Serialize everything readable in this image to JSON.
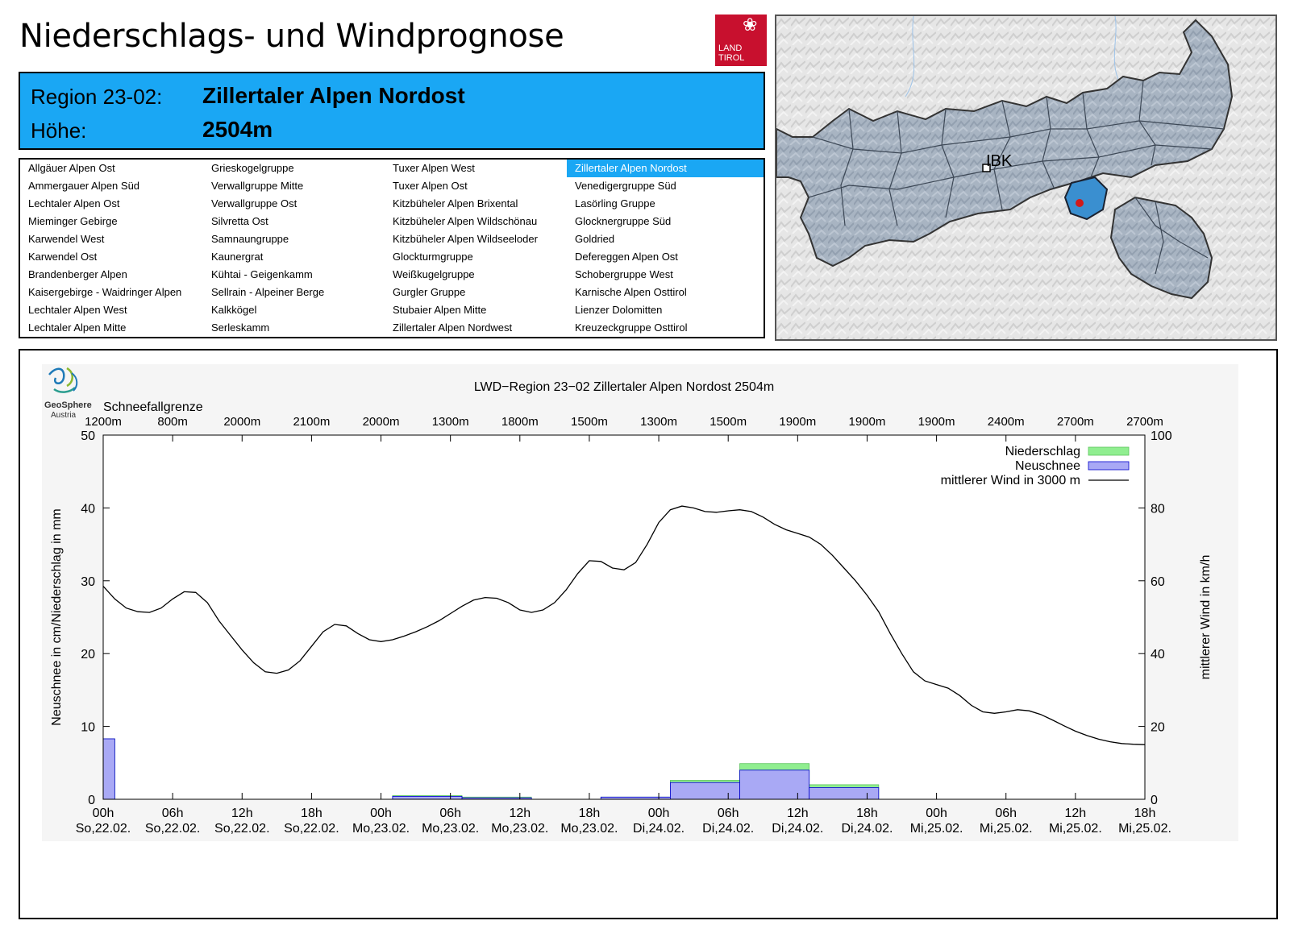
{
  "header": {
    "title": "Niederschlags- und Windprognose",
    "logo": {
      "line1": "LAND",
      "line2": "TIROL",
      "icon": "tirol-eagle-icon",
      "color": "#c8102e"
    }
  },
  "region": {
    "region_label": "Region 23-02:",
    "region_name": "Zillertaler Alpen Nordost",
    "height_label": "Höhe:",
    "height_value": "2504m",
    "accent": "#1aa7f4"
  },
  "region_list": {
    "columns": [
      [
        "Allgäuer Alpen Ost",
        "Ammergauer Alpen Süd",
        "Lechtaler Alpen Ost",
        "Mieminger Gebirge",
        "Karwendel West",
        "Karwendel Ost",
        "Brandenberger Alpen",
        "Kaisergebirge - Waidringer Alpen",
        "Lechtaler Alpen West",
        "Lechtaler Alpen Mitte"
      ],
      [
        "Grieskogelgruppe",
        "Verwallgruppe Mitte",
        "Verwallgruppe Ost",
        "Silvretta Ost",
        "Samnaungruppe",
        "Kaunergrat",
        "Kühtai - Geigenkamm",
        "Sellrain - Alpeiner Berge",
        "Kalkkögel",
        "Serleskamm"
      ],
      [
        "Tuxer Alpen West",
        "Tuxer Alpen Ost",
        "Kitzbüheler Alpen Brixental",
        "Kitzbüheler Alpen Wildschönau",
        "Kitzbüheler Alpen Wildseeloder",
        "Glockturmgruppe",
        "Weißkugelgruppe",
        "Gurgler Gruppe",
        "Stubaier Alpen Mitte",
        "Zillertaler Alpen Nordwest"
      ],
      [
        "Zillertaler Alpen Nordost",
        "Venedigergruppe Süd",
        "Lasörling Gruppe",
        "Glocknergruppe Süd",
        "Goldried",
        "Defereggen Alpen Ost",
        "Schobergruppe West",
        "Karnische Alpen Osttirol",
        "Lienzer Dolomitten",
        "Kreuzeckgruppe Osttirol"
      ]
    ],
    "selected": "Zillertaler Alpen Nordost"
  },
  "map": {
    "city_label": "IBK",
    "region_color": "#3a8fd0",
    "marker_color": "#d11a1a"
  },
  "chart_data": {
    "type": "bar",
    "title": "LWD−Region 23−02 Zillertaler Alpen Nordost 2504m",
    "provider": {
      "name": "GeoSphere",
      "sub": "Austria",
      "icon": "geosphere-logo-icon"
    },
    "snowline_label": "Schneefallgrenze",
    "snowline": [
      "1200m",
      "800m",
      "2000m",
      "2100m",
      "2000m",
      "1300m",
      "1800m",
      "1500m",
      "1300m",
      "1500m",
      "1900m",
      "1900m",
      "1900m",
      "2400m",
      "2700m",
      "2700m"
    ],
    "x_ticks": [
      {
        "time": "00h",
        "date": "So,22.02."
      },
      {
        "time": "06h",
        "date": "So,22.02."
      },
      {
        "time": "12h",
        "date": "So,22.02."
      },
      {
        "time": "18h",
        "date": "So,22.02."
      },
      {
        "time": "00h",
        "date": "Mo,23.02."
      },
      {
        "time": "06h",
        "date": "Mo,23.02."
      },
      {
        "time": "12h",
        "date": "Mo,23.02."
      },
      {
        "time": "18h",
        "date": "Mo,23.02."
      },
      {
        "time": "00h",
        "date": "Di,24.02."
      },
      {
        "time": "06h",
        "date": "Di,24.02."
      },
      {
        "time": "12h",
        "date": "Di,24.02."
      },
      {
        "time": "18h",
        "date": "Di,24.02."
      },
      {
        "time": "00h",
        "date": "Mi,25.02."
      },
      {
        "time": "06h",
        "date": "Mi,25.02."
      },
      {
        "time": "12h",
        "date": "Mi,25.02."
      },
      {
        "time": "18h",
        "date": "Mi,25.02."
      }
    ],
    "ylabel": "Neuschnee in cm/Niederschlag in mm",
    "ylabel_right": "mittlerer Wind in km/h",
    "ylim": [
      0,
      50
    ],
    "ylim_right": [
      0,
      100
    ],
    "yticks": [
      0,
      10,
      20,
      30,
      40,
      50
    ],
    "yticks_right": [
      0,
      20,
      40,
      60,
      80,
      100
    ],
    "legend_position": "top-right",
    "series": [
      {
        "name": "Niederschlag",
        "color": "#90ee90",
        "bars": [
          {
            "start": 0,
            "end": 1,
            "value": 8.3
          },
          {
            "start": 25,
            "end": 31,
            "value": 0.5
          },
          {
            "start": 31,
            "end": 37,
            "value": 0.3
          },
          {
            "start": 43,
            "end": 49,
            "value": 0.3
          },
          {
            "start": 49,
            "end": 55,
            "value": 2.6
          },
          {
            "start": 55,
            "end": 61,
            "value": 4.9
          },
          {
            "start": 61,
            "end": 67,
            "value": 2.0
          }
        ]
      },
      {
        "name": "Neuschnee",
        "color": "#a9a9f5",
        "bars": [
          {
            "start": 0,
            "end": 1,
            "value": 8.3
          },
          {
            "start": 25,
            "end": 31,
            "value": 0.4
          },
          {
            "start": 31,
            "end": 37,
            "value": 0.2
          },
          {
            "start": 43,
            "end": 49,
            "value": 0.3
          },
          {
            "start": 49,
            "end": 55,
            "value": 2.3
          },
          {
            "start": 55,
            "end": 61,
            "value": 4.0
          },
          {
            "start": 61,
            "end": 67,
            "value": 1.6
          }
        ]
      },
      {
        "name": "mittlerer Wind in 3000 m",
        "color": "#000000",
        "axis": "right",
        "x": [
          0,
          1,
          2,
          3,
          4,
          5,
          6,
          7,
          8,
          9,
          10,
          11,
          12,
          13,
          14,
          15,
          16,
          17,
          18,
          19,
          20,
          21,
          22,
          23,
          24,
          25,
          26,
          27,
          28,
          29,
          30,
          31,
          32,
          33,
          34,
          35,
          36,
          37,
          38,
          39,
          40,
          41,
          42,
          43,
          44,
          45,
          46,
          47,
          48,
          49,
          50,
          51,
          52,
          53,
          54,
          55,
          56,
          57,
          58,
          59,
          60,
          61,
          62,
          63,
          64,
          65,
          66,
          67,
          68,
          69,
          70,
          71,
          72,
          73,
          74,
          75,
          76,
          77,
          78,
          79,
          80,
          81,
          82,
          83,
          84,
          85,
          86,
          87,
          88,
          89,
          90
        ],
        "y": [
          58.5,
          55,
          52.5,
          51.5,
          51.3,
          52.5,
          55,
          57,
          56.8,
          54,
          49,
          45,
          41,
          37.5,
          35,
          34.6,
          35.5,
          38,
          42,
          46,
          48,
          47.6,
          45.5,
          43.8,
          43.3,
          43.8,
          44.8,
          46,
          47.4,
          49,
          51,
          53,
          54.7,
          55.4,
          55.2,
          54,
          52,
          51.3,
          52,
          54,
          57.5,
          62,
          65.5,
          65.3,
          63.5,
          63,
          65,
          70,
          76,
          79.5,
          80.5,
          80,
          79,
          78.8,
          79.2,
          79.5,
          79,
          77.5,
          75.5,
          74,
          73,
          72,
          70,
          67,
          63.5,
          60,
          56,
          51.5,
          45.5,
          40,
          35,
          32.5,
          31.5,
          30.5,
          28.5,
          25.8,
          24,
          23.6,
          24,
          24.6,
          24.3,
          23.3,
          21.8,
          20.2,
          18.7,
          17.5,
          16.5,
          15.8,
          15.3,
          15.1,
          15
        ]
      }
    ]
  }
}
